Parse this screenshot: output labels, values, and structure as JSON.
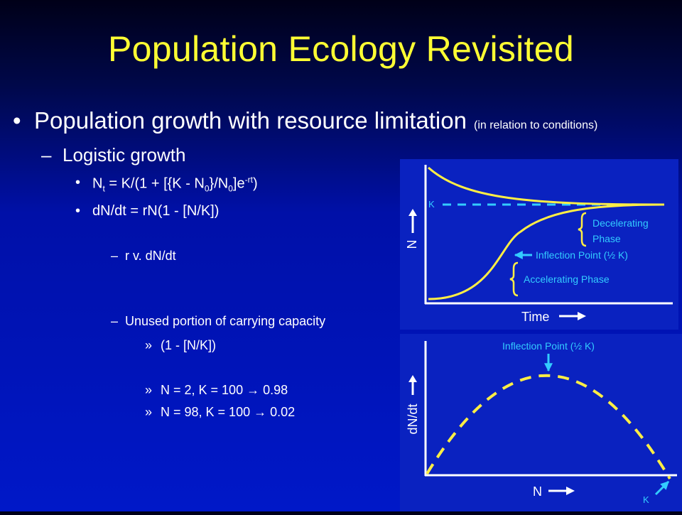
{
  "slide": {
    "title": "Population Ecology Revisited",
    "bullet1_main": "Population growth with resource limitation",
    "bullet1_note": "(in relation to conditions)",
    "sub1": "Logistic growth",
    "eq1_parts": {
      "p1": "N",
      "p1sub": "t",
      "p2": " = K/(1 + [{K - N",
      "p2sub": "0",
      "p3": "}/N",
      "p3sub": "0",
      "p4": "]e",
      "p4sup": "-rt",
      "p5": ")"
    },
    "eq2": "dN/dt = rN(1 - [N/K])",
    "item_r": "r v. dN/dt",
    "item_unused": "Unused portion of carrying capacity",
    "sub_formula": "(1 - [N/K])",
    "ex1": "N = 2, K = 100 → 0.98",
    "ex2": "N = 98, K = 100 → 0.02",
    "bullet_dot": "•",
    "dash": "–",
    "raquo": "»"
  },
  "graph1": {
    "k_label": "K",
    "y_label": "N",
    "x_label": "Time",
    "decel_line1": "Decelerating",
    "decel_line2": "Phase",
    "inflection_label": "Inflection Point (½ K)",
    "accel_label": "Accelerating Phase"
  },
  "graph2": {
    "inflection_label": "Inflection Point (½ K)",
    "y_label": "dN/dt",
    "x_label": "N",
    "k_label": "K"
  },
  "colors": {
    "title": "#ffff33",
    "curve": "#ffee44",
    "annotation": "#33ccff",
    "axes": "#ffffff",
    "panel": "#0a22c0"
  }
}
